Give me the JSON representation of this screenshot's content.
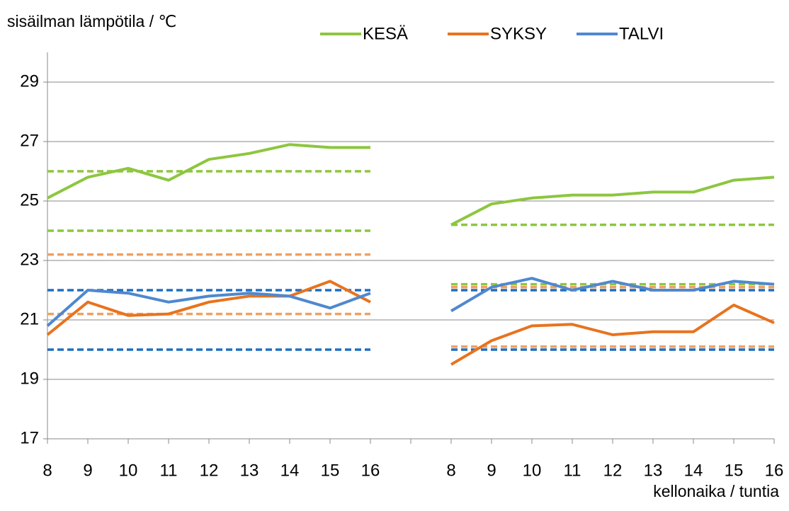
{
  "chart_data": {
    "type": "line",
    "ylabel": "sisäilman lämpötila / ℃",
    "xlabel": "kellonaika / tuntia",
    "categories": [
      "8",
      "9",
      "10",
      "11",
      "12",
      "13",
      "14",
      "15",
      "16",
      null,
      "8",
      "9",
      "10",
      "11",
      "12",
      "13",
      "14",
      "15",
      "16"
    ],
    "ylim": [
      17,
      30
    ],
    "yticks": [
      17,
      19,
      21,
      23,
      25,
      27,
      29
    ],
    "grid": true,
    "series": [
      {
        "name": "KESÄ",
        "color": "#8dc63f",
        "values": [
          25.1,
          25.8,
          26.1,
          25.7,
          26.4,
          26.6,
          26.9,
          26.8,
          26.8,
          null,
          24.2,
          24.9,
          25.1,
          25.2,
          25.2,
          25.3,
          25.3,
          25.7,
          25.8
        ]
      },
      {
        "name": "SYKSY",
        "color": "#e8731e",
        "values": [
          20.5,
          21.6,
          21.15,
          21.2,
          21.6,
          21.8,
          21.8,
          22.3,
          21.6,
          null,
          19.5,
          20.3,
          20.8,
          20.85,
          20.5,
          20.6,
          20.6,
          21.5,
          20.9
        ]
      },
      {
        "name": "TALVI",
        "color": "#4f88cf",
        "values": [
          20.8,
          22.0,
          21.9,
          21.6,
          21.8,
          21.9,
          21.8,
          21.4,
          21.9,
          null,
          21.3,
          22.1,
          22.4,
          22.0,
          22.3,
          22.0,
          22.0,
          22.3,
          22.2
        ]
      }
    ],
    "reference_lines": [
      {
        "color": "#8dc63f",
        "values": [
          26,
          26,
          26,
          26,
          26,
          26,
          26,
          26,
          26,
          null,
          24.2,
          24.2,
          24.2,
          24.2,
          24.2,
          24.2,
          24.2,
          24.2,
          24.2
        ]
      },
      {
        "color": "#8dc63f",
        "values": [
          24,
          24,
          24,
          24,
          24,
          24,
          24,
          24,
          24,
          null,
          22.2,
          22.2,
          22.2,
          22.2,
          22.2,
          22.2,
          22.2,
          22.2,
          22.2
        ]
      },
      {
        "color": "#f0a060",
        "values": [
          23.2,
          23.2,
          23.2,
          23.2,
          23.2,
          23.2,
          23.2,
          23.2,
          23.2,
          null,
          22.1,
          22.1,
          22.1,
          22.1,
          22.1,
          22.1,
          22.1,
          22.1,
          22.1
        ]
      },
      {
        "color": "#f0a060",
        "values": [
          21.2,
          21.2,
          21.2,
          21.2,
          21.2,
          21.2,
          21.2,
          21.2,
          21.2,
          null,
          20.1,
          20.1,
          20.1,
          20.1,
          20.1,
          20.1,
          20.1,
          20.1,
          20.1
        ]
      },
      {
        "color": "#1f6fbf",
        "values": [
          22,
          22,
          22,
          22,
          22,
          22,
          22,
          22,
          22,
          null,
          22,
          22,
          22,
          22,
          22,
          22,
          22,
          22,
          22
        ]
      },
      {
        "color": "#1f6fbf",
        "values": [
          20,
          20,
          20,
          20,
          20,
          20,
          20,
          20,
          20,
          null,
          20,
          20,
          20,
          20,
          20,
          20,
          20,
          20,
          20
        ]
      }
    ]
  }
}
